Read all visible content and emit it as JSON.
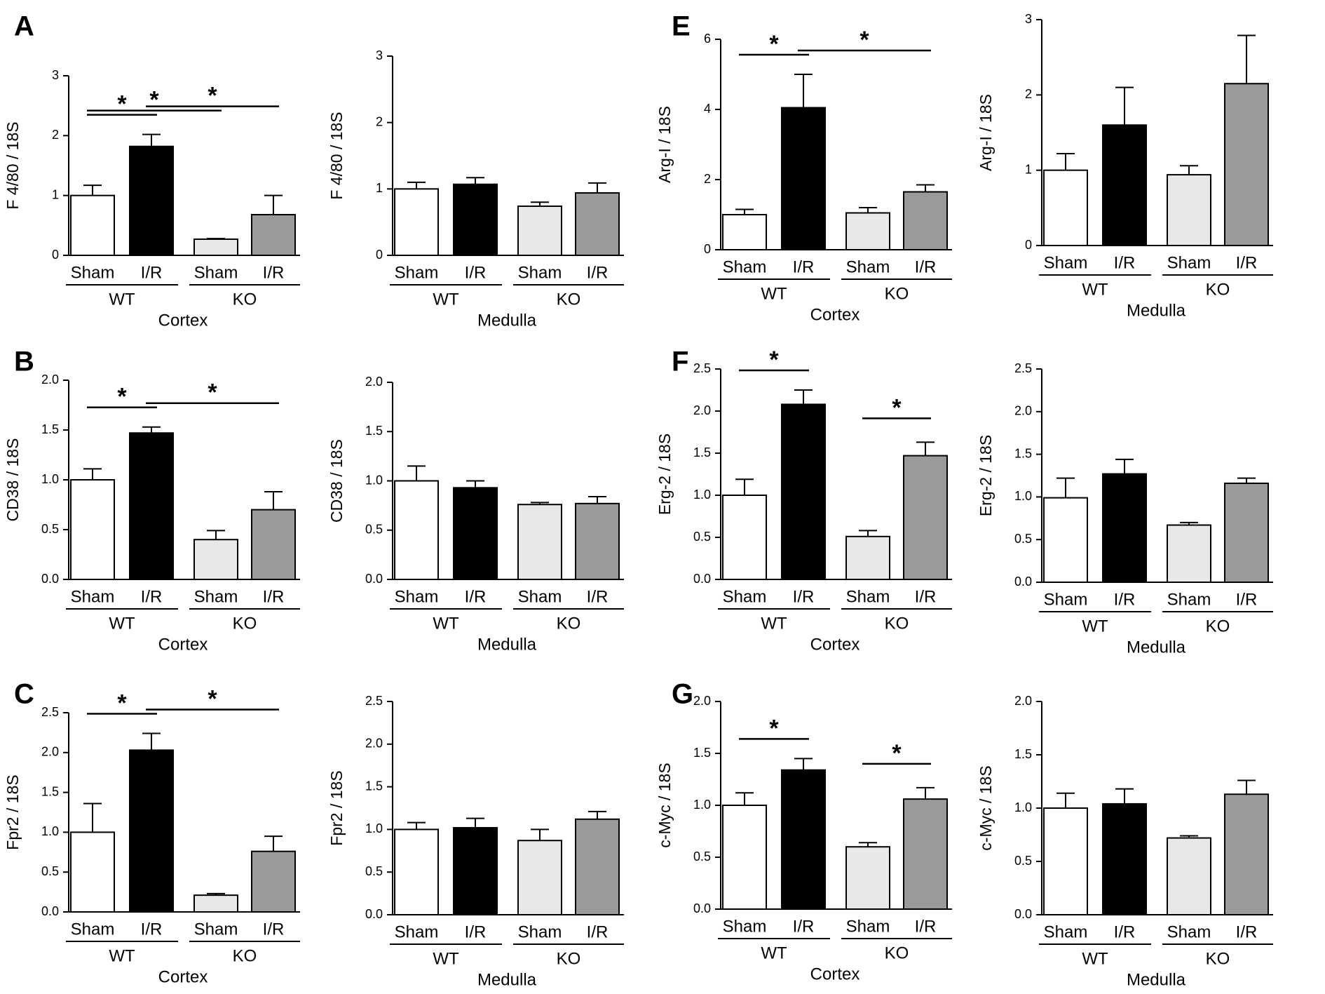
{
  "figure": {
    "colors": {
      "Sham_WT": "#ffffff",
      "IR_WT": "#000000",
      "Sham_KO": "#e8e8e8",
      "IR_KO": "#9a9a9a",
      "stroke": "#000000"
    },
    "categories": [
      "Sham",
      "I/R",
      "Sham",
      "I/R"
    ],
    "groups": [
      "WT",
      "KO"
    ]
  },
  "chart_data": [
    {
      "id": "A-cortex",
      "panel": "A",
      "type": "bar",
      "ylabel": "F 4/80 / 18S",
      "region": "Cortex",
      "categories": [
        "Sham",
        "I/R",
        "Sham",
        "I/R"
      ],
      "groups": [
        "WT",
        "KO"
      ],
      "values": [
        1.0,
        1.82,
        0.27,
        0.68
      ],
      "errors": [
        0.17,
        0.2,
        0.01,
        0.32
      ],
      "ylim": [
        0,
        3
      ],
      "yticks": [
        "0",
        "1",
        "2",
        "3"
      ],
      "significance": [
        {
          "from": 0,
          "to": 1,
          "label": "*"
        },
        {
          "from": 0,
          "to": 2,
          "label": "*"
        },
        {
          "from": 1,
          "to": 3,
          "label": "*"
        }
      ]
    },
    {
      "id": "A-medulla",
      "panel": "",
      "type": "bar",
      "ylabel": "F 4/80 / 18S",
      "region": "Medulla",
      "categories": [
        "Sham",
        "I/R",
        "Sham",
        "I/R"
      ],
      "groups": [
        "WT",
        "KO"
      ],
      "values": [
        1.0,
        1.07,
        0.74,
        0.94
      ],
      "errors": [
        0.1,
        0.1,
        0.06,
        0.15
      ],
      "ylim": [
        0,
        3
      ],
      "yticks": [
        "0",
        "1",
        "2",
        "3"
      ],
      "significance": []
    },
    {
      "id": "B-cortex",
      "panel": "B",
      "type": "bar",
      "ylabel": "CD38 / 18S",
      "region": "Cortex",
      "categories": [
        "Sham",
        "I/R",
        "Sham",
        "I/R"
      ],
      "groups": [
        "WT",
        "KO"
      ],
      "values": [
        1.0,
        1.47,
        0.4,
        0.7
      ],
      "errors": [
        0.11,
        0.06,
        0.09,
        0.18
      ],
      "ylim": [
        0,
        2
      ],
      "yticks": [
        "0.0",
        "0.5",
        "1.0",
        "1.5",
        "2.0"
      ],
      "significance": [
        {
          "from": 0,
          "to": 1,
          "label": "*"
        },
        {
          "from": 1,
          "to": 3,
          "label": "*"
        }
      ]
    },
    {
      "id": "B-medulla",
      "panel": "",
      "type": "bar",
      "ylabel": "CD38 / 18S",
      "region": "Medulla",
      "categories": [
        "Sham",
        "I/R",
        "Sham",
        "I/R"
      ],
      "groups": [
        "WT",
        "KO"
      ],
      "values": [
        1.0,
        0.93,
        0.76,
        0.77
      ],
      "errors": [
        0.15,
        0.07,
        0.02,
        0.07
      ],
      "ylim": [
        0,
        2
      ],
      "yticks": [
        "0.0",
        "0.5",
        "1.0",
        "1.5",
        "2.0"
      ],
      "significance": []
    },
    {
      "id": "C-cortex",
      "panel": "C",
      "type": "bar",
      "ylabel": "Fpr2 / 18S",
      "region": "Cortex",
      "categories": [
        "Sham",
        "I/R",
        "Sham",
        "I/R"
      ],
      "groups": [
        "WT",
        "KO"
      ],
      "values": [
        1.0,
        2.03,
        0.21,
        0.76
      ],
      "errors": [
        0.36,
        0.21,
        0.02,
        0.19
      ],
      "ylim": [
        0,
        2.5
      ],
      "yticks": [
        "0.0",
        "0.5",
        "1.0",
        "1.5",
        "2.0",
        "2.5"
      ],
      "significance": [
        {
          "from": 0,
          "to": 1,
          "label": "*"
        },
        {
          "from": 1,
          "to": 3,
          "label": "*"
        }
      ]
    },
    {
      "id": "C-medulla",
      "panel": "",
      "type": "bar",
      "ylabel": "Fpr2 / 18S",
      "region": "Medulla",
      "categories": [
        "Sham",
        "I/R",
        "Sham",
        "I/R"
      ],
      "groups": [
        "WT",
        "KO"
      ],
      "values": [
        1.0,
        1.02,
        0.87,
        1.12
      ],
      "errors": [
        0.08,
        0.11,
        0.13,
        0.09
      ],
      "ylim": [
        0,
        2.5
      ],
      "yticks": [
        "0.0",
        "0.5",
        "1.0",
        "1.5",
        "2.0",
        "2.5"
      ],
      "significance": []
    },
    {
      "id": "E-cortex",
      "panel": "E",
      "type": "bar",
      "ylabel": "Arg-I / 18S",
      "region": "Cortex",
      "categories": [
        "Sham",
        "I/R",
        "Sham",
        "I/R"
      ],
      "groups": [
        "WT",
        "KO"
      ],
      "values": [
        1.0,
        4.05,
        1.05,
        1.65
      ],
      "errors": [
        0.15,
        0.95,
        0.15,
        0.2
      ],
      "ylim": [
        0,
        6
      ],
      "yticks": [
        "0",
        "2",
        "4",
        "6"
      ],
      "significance": [
        {
          "from": 0,
          "to": 1,
          "label": "*"
        },
        {
          "from": 1,
          "to": 3,
          "label": "*"
        }
      ]
    },
    {
      "id": "E-medulla",
      "panel": "",
      "type": "bar",
      "ylabel": "Arg-I / 18S",
      "region": "Medulla",
      "categories": [
        "Sham",
        "I/R",
        "Sham",
        "I/R"
      ],
      "groups": [
        "WT",
        "KO"
      ],
      "values": [
        1.0,
        1.6,
        0.94,
        2.15
      ],
      "errors": [
        0.22,
        0.5,
        0.12,
        0.64
      ],
      "ylim": [
        0,
        3
      ],
      "yticks": [
        "0",
        "1",
        "2",
        "3"
      ],
      "significance": []
    },
    {
      "id": "F-cortex",
      "panel": "F",
      "type": "bar",
      "ylabel": "Erg-2 / 18S",
      "region": "Cortex",
      "categories": [
        "Sham",
        "I/R",
        "Sham",
        "I/R"
      ],
      "groups": [
        "WT",
        "KO"
      ],
      "values": [
        1.0,
        2.08,
        0.51,
        1.47
      ],
      "errors": [
        0.19,
        0.17,
        0.07,
        0.16
      ],
      "ylim": [
        0,
        2.5
      ],
      "yticks": [
        "0.0",
        "0.5",
        "1.0",
        "1.5",
        "2.0",
        "2.5"
      ],
      "significance": [
        {
          "from": 0,
          "to": 1,
          "label": "*"
        },
        {
          "from": 2,
          "to": 3,
          "label": "*"
        }
      ]
    },
    {
      "id": "F-medulla",
      "panel": "",
      "type": "bar",
      "ylabel": "Erg-2 / 18S",
      "region": "Medulla",
      "categories": [
        "Sham",
        "I/R",
        "Sham",
        "I/R"
      ],
      "groups": [
        "WT",
        "KO"
      ],
      "values": [
        0.99,
        1.27,
        0.67,
        1.16
      ],
      "errors": [
        0.23,
        0.17,
        0.03,
        0.06
      ],
      "ylim": [
        0,
        2.5
      ],
      "yticks": [
        "0.0",
        "0.5",
        "1.0",
        "1.5",
        "2.0",
        "2.5"
      ],
      "significance": []
    },
    {
      "id": "G-cortex",
      "panel": "G",
      "type": "bar",
      "ylabel": "c-Myc / 18S",
      "region": "Cortex",
      "categories": [
        "Sham",
        "I/R",
        "Sham",
        "I/R"
      ],
      "groups": [
        "WT",
        "KO"
      ],
      "values": [
        1.0,
        1.34,
        0.6,
        1.06
      ],
      "errors": [
        0.12,
        0.11,
        0.04,
        0.11
      ],
      "ylim": [
        0,
        2
      ],
      "yticks": [
        "0.0",
        "0.5",
        "1.0",
        "1.5",
        "2.0"
      ],
      "significance": [
        {
          "from": 0,
          "to": 1,
          "label": "*"
        },
        {
          "from": 2,
          "to": 3,
          "label": "*"
        }
      ]
    },
    {
      "id": "G-medulla",
      "panel": "",
      "type": "bar",
      "ylabel": "c-Myc / 18S",
      "region": "Medulla",
      "categories": [
        "Sham",
        "I/R",
        "Sham",
        "I/R"
      ],
      "groups": [
        "WT",
        "KO"
      ],
      "values": [
        1.0,
        1.04,
        0.72,
        1.13
      ],
      "errors": [
        0.14,
        0.14,
        0.02,
        0.13
      ],
      "ylim": [
        0,
        2
      ],
      "yticks": [
        "0.0",
        "0.5",
        "1.0",
        "1.5",
        "2.0"
      ],
      "significance": []
    }
  ]
}
